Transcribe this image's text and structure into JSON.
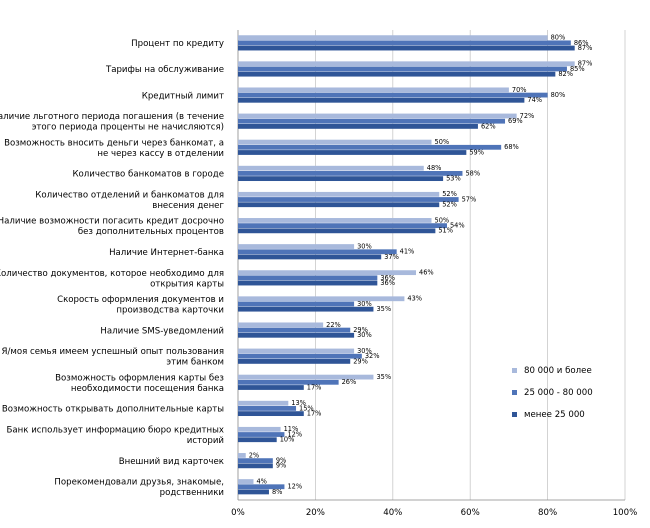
{
  "chart_data": {
    "type": "bar",
    "orientation": "horizontal",
    "categories": [
      "Процент по кредиту",
      "Тарифы на обслуживание",
      "Кредитный лимит",
      "Наличие льготного периода погашения (в течение этого периода проценты не начисляются)",
      "Возможность вносить деньги через банкомат, а не через кассу в отделении",
      "Количество банкоматов в городе",
      "Количество отделений и банкоматов для внесения денег",
      "Наличие возможности погасить кредит досрочно без дополнительных процентов",
      "Наличие Интернет-банка",
      "Количество документов, которое необходимо для открытия карты",
      "Скорость оформления документов и производства карточки",
      "Наличие SMS-уведомлений",
      "Я/моя семья имеем успешный опыт пользования этим банком",
      "Возможность оформления карты без необходимости посещения банка",
      "Возможность открывать дополнительные карты",
      "Банк использует информацию бюро кредитных историй",
      "Внешний вид карточек",
      "Порекомендовали друзья, знакомые, родственники"
    ],
    "category_lines": [
      [
        "Процент по кредиту"
      ],
      [
        "Тарифы на обслуживание"
      ],
      [
        "Кредитный лимит"
      ],
      [
        "Наличие льготного периода погашения (в течение",
        "этого периода проценты не начисляются)"
      ],
      [
        "Возможность вносить деньги через банкомат, а",
        "не через кассу в отделении"
      ],
      [
        "Количество банкоматов в городе"
      ],
      [
        "Количество отделений и банкоматов для",
        "внесения денег"
      ],
      [
        "Наличие возможности погасить кредит досрочно",
        "без дополнительных процентов"
      ],
      [
        "Наличие Интернет-банка"
      ],
      [
        "Количество документов, которое необходимо для",
        "открытия карты"
      ],
      [
        "Скорость оформления документов и",
        "производства карточки"
      ],
      [
        "Наличие SMS-уведомлений"
      ],
      [
        "Я/моя семья имеем успешный опыт пользования",
        "этим банком"
      ],
      [
        "Возможность оформления карты без",
        "необходимости посещения банка"
      ],
      [
        "Возможность открывать дополнительные карты"
      ],
      [
        "Банк использует информацию бюро кредитных",
        "историй"
      ],
      [
        "Внешний вид карточек"
      ],
      [
        "Порекомендовали друзья, знакомые,",
        "родственники"
      ]
    ],
    "series": [
      {
        "name": "80 000 и более",
        "color": "#a8b9dc",
        "values": [
          80,
          87,
          70,
          72,
          50,
          48,
          52,
          50,
          30,
          46,
          43,
          22,
          30,
          35,
          13,
          11,
          2,
          4
        ],
        "labels": [
          "80%",
          "87%",
          "70%",
          "72%",
          "50%",
          "48%",
          "52%",
          "50%",
          "30%",
          "46%",
          "43%",
          "22%",
          "30%",
          "35%",
          "13%",
          "11%",
          "2%",
          "4%"
        ]
      },
      {
        "name": "25 000 - 80 000",
        "color": "#4f74b8",
        "values": [
          86,
          85,
          80,
          69,
          68,
          58,
          57,
          54,
          41,
          36,
          30,
          29,
          32,
          26,
          15,
          12,
          9,
          12
        ],
        "labels": [
          "86%",
          "85%",
          "80%",
          "69%",
          "68%",
          "58%",
          "57%",
          "54%",
          "41%",
          "36%",
          "30%",
          "29%",
          "32%",
          "26%",
          "15%",
          "12%",
          "9%",
          "12%"
        ]
      },
      {
        "name": "менее 25 000",
        "color": "#2f5597",
        "values": [
          87,
          82,
          74,
          62,
          59,
          53,
          52,
          51,
          37,
          36,
          35,
          30,
          29,
          17,
          17,
          10,
          9,
          8
        ],
        "labels": [
          "87%",
          "82%",
          "74%",
          "62%",
          "59%",
          "53%",
          "52%",
          "51%",
          "37%",
          "36%",
          "35%",
          "30%",
          "29%",
          "17%",
          "17%",
          "10%",
          "9%",
          "8%"
        ]
      }
    ],
    "x_ticks": [
      "0%",
      "20%",
      "40%",
      "60%",
      "80%",
      "100%"
    ],
    "xlim": [
      0,
      100
    ],
    "grid": "vertical",
    "legend_position": "right"
  }
}
